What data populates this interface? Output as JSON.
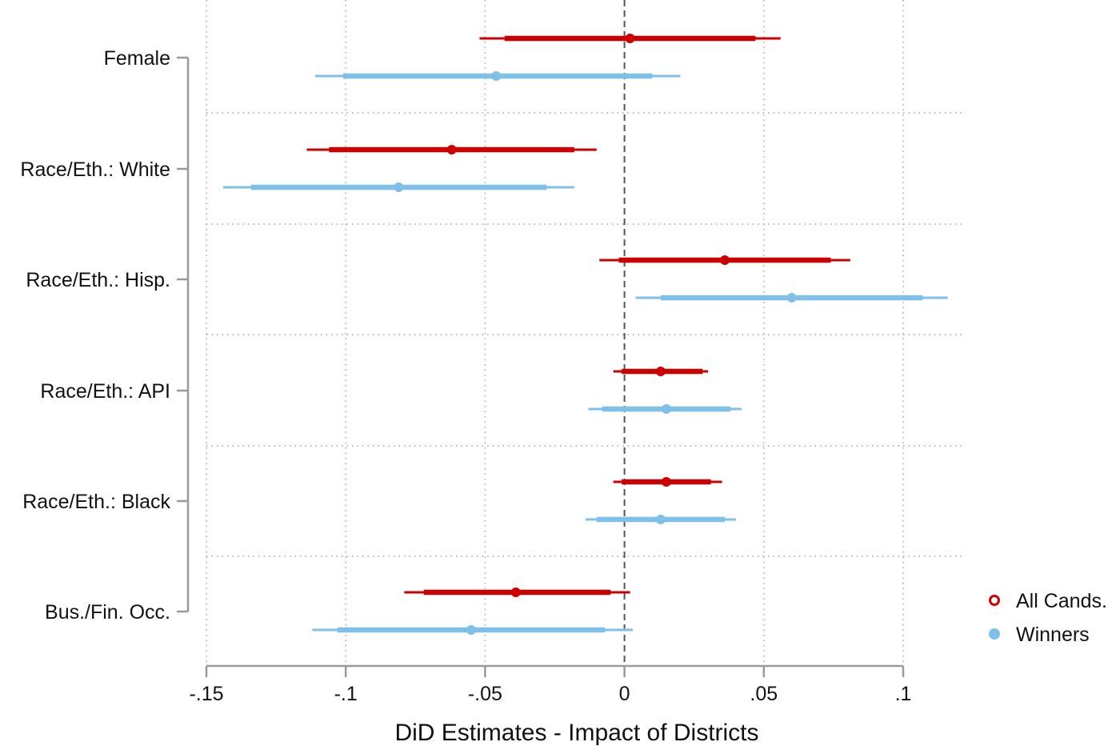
{
  "chart_data": {
    "type": "coefficient-plot",
    "xlabel": "DiD Estimates - Impact of Districts",
    "ylabel": "",
    "xlim": [
      -0.15,
      0.1
    ],
    "xticks": [
      -0.15,
      -0.1,
      -0.05,
      0,
      0.05,
      0.1
    ],
    "xtick_labels": [
      "-.15",
      "-.1",
      "-.05",
      "0",
      ".05",
      ".1"
    ],
    "reference_line": 0,
    "grid": true,
    "legend_position": "right",
    "categories": [
      "Female",
      "Race/Eth.: White",
      "Race/Eth.: Hisp.",
      "Race/Eth.: API",
      "Race/Eth.: Black",
      "Bus./Fin. Occ."
    ],
    "series": [
      {
        "name": "All Cands.",
        "color": "#cc0000",
        "points": [
          {
            "estimate": 0.002,
            "ci90": [
              -0.043,
              0.047
            ],
            "ci95": [
              -0.052,
              0.056
            ]
          },
          {
            "estimate": -0.062,
            "ci90": [
              -0.106,
              -0.018
            ],
            "ci95": [
              -0.114,
              -0.01
            ]
          },
          {
            "estimate": 0.036,
            "ci90": [
              -0.002,
              0.074
            ],
            "ci95": [
              -0.009,
              0.081
            ]
          },
          {
            "estimate": 0.013,
            "ci90": [
              -0.001,
              0.028
            ],
            "ci95": [
              -0.004,
              0.03
            ]
          },
          {
            "estimate": 0.015,
            "ci90": [
              -0.001,
              0.031
            ],
            "ci95": [
              -0.004,
              0.035
            ]
          },
          {
            "estimate": -0.039,
            "ci90": [
              -0.072,
              -0.005
            ],
            "ci95": [
              -0.079,
              0.002
            ]
          }
        ]
      },
      {
        "name": "Winners",
        "color": "#7ec0e8",
        "points": [
          {
            "estimate": -0.046,
            "ci90": [
              -0.101,
              0.01
            ],
            "ci95": [
              -0.111,
              0.02
            ]
          },
          {
            "estimate": -0.081,
            "ci90": [
              -0.134,
              -0.028
            ],
            "ci95": [
              -0.144,
              -0.018
            ]
          },
          {
            "estimate": 0.06,
            "ci90": [
              0.013,
              0.107
            ],
            "ci95": [
              0.004,
              0.116
            ]
          },
          {
            "estimate": 0.015,
            "ci90": [
              -0.008,
              0.038
            ],
            "ci95": [
              -0.013,
              0.042
            ]
          },
          {
            "estimate": 0.013,
            "ci90": [
              -0.01,
              0.036
            ],
            "ci95": [
              -0.014,
              0.04
            ]
          },
          {
            "estimate": -0.055,
            "ci90": [
              -0.103,
              -0.007
            ],
            "ci95": [
              -0.112,
              0.003
            ]
          }
        ]
      }
    ]
  }
}
